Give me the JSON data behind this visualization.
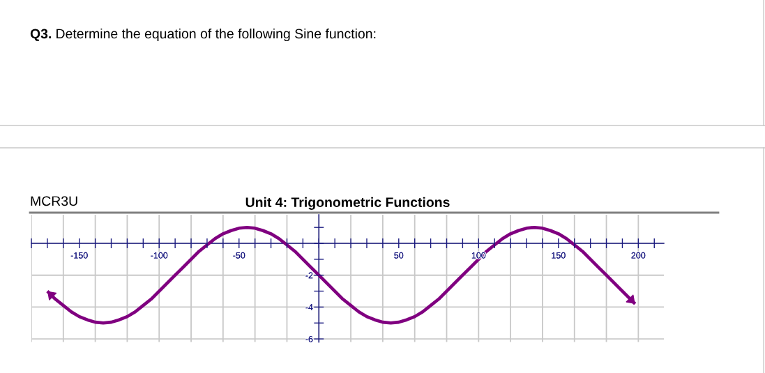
{
  "chart_data": {
    "type": "line",
    "title": "Unit 4: Trigonometric Functions",
    "annotations": [
      "Q3.",
      "Determine the equation of the following Sine function:",
      "MCR3U"
    ],
    "x": [
      -170,
      -165,
      -160,
      -155,
      -150,
      -145,
      -140,
      -135,
      -130,
      -125,
      -120,
      -115,
      -110,
      -105,
      -100,
      -95,
      -90,
      -85,
      -80,
      -75,
      -70,
      -65,
      -60,
      -55,
      -50,
      -45,
      -40,
      -35,
      -30,
      -25,
      -20,
      -15,
      -10,
      -5,
      0,
      5,
      10,
      15,
      20,
      25,
      30,
      35,
      40,
      45,
      50,
      55,
      60,
      65,
      70,
      75,
      80,
      85,
      90,
      95,
      100,
      105,
      110,
      115,
      120,
      125,
      130,
      135,
      140,
      145,
      150,
      155,
      160,
      165,
      170,
      175,
      180,
      185,
      190,
      198
    ],
    "series": [
      {
        "color": "#800080",
        "values": [
          -3.0,
          -3.5,
          -3.9,
          -4.3,
          -4.6,
          -4.8,
          -4.95,
          -5.0,
          -4.95,
          -4.8,
          -4.6,
          -4.3,
          -3.9,
          -3.5,
          -3.0,
          -2.5,
          -2.0,
          -1.5,
          -1.0,
          -0.5,
          -0.1,
          0.3,
          0.6,
          0.8,
          0.95,
          1.0,
          0.95,
          0.8,
          0.6,
          0.3,
          -0.1,
          -0.5,
          -1.0,
          -1.5,
          -2.0,
          -2.5,
          -3.0,
          -3.5,
          -3.9,
          -4.3,
          -4.6,
          -4.8,
          -4.95,
          -5.0,
          -4.95,
          -4.8,
          -4.6,
          -4.3,
          -3.9,
          -3.5,
          -3.0,
          -2.5,
          -2.0,
          -1.5,
          -1.0,
          -0.5,
          -0.1,
          0.3,
          0.6,
          0.8,
          0.95,
          1.0,
          0.95,
          0.8,
          0.6,
          0.3,
          -0.1,
          -0.5,
          -1.0,
          -1.5,
          -2.0,
          -2.5,
          -3.0,
          -3.8
        ]
      }
    ],
    "xlim": [
      -180,
      216
    ],
    "ylim": [
      -6.2,
      1.8
    ],
    "xticks": [
      {
        "value": -180,
        "label": null
      },
      {
        "value": -170,
        "label": null
      },
      {
        "value": -160,
        "label": null
      },
      -150,
      {
        "value": -140,
        "label": null
      },
      {
        "value": -130,
        "label": null
      },
      {
        "value": -120,
        "label": null
      },
      {
        "value": -110,
        "label": null
      },
      -100,
      {
        "value": -90,
        "label": null
      },
      {
        "value": -80,
        "label": null
      },
      {
        "value": -70,
        "label": null
      },
      {
        "value": -60,
        "label": null
      },
      -50,
      {
        "value": -40,
        "label": null
      },
      {
        "value": -30,
        "label": null
      },
      {
        "value": -20,
        "label": null
      },
      {
        "value": -10,
        "label": null
      },
      {
        "value": 0,
        "label": null
      },
      {
        "value": 10,
        "label": null
      },
      {
        "value": 20,
        "label": null
      },
      {
        "value": 30,
        "label": null
      },
      {
        "value": 40,
        "label": null
      },
      50,
      {
        "value": 60,
        "label": null
      },
      {
        "value": 70,
        "label": null
      },
      {
        "value": 80,
        "label": null
      },
      {
        "value": 90,
        "label": null
      },
      100,
      {
        "value": 110,
        "label": null
      },
      {
        "value": 120,
        "label": null
      },
      {
        "value": 130,
        "label": null
      },
      {
        "value": 140,
        "label": null
      },
      150,
      {
        "value": 160,
        "label": null
      },
      {
        "value": 170,
        "label": null
      },
      {
        "value": 180,
        "label": null
      },
      {
        "value": 190,
        "label": null
      },
      200,
      {
        "value": 210,
        "label": null
      }
    ],
    "yticks": [
      -6,
      {
        "value": -5,
        "label": null
      },
      -4,
      {
        "value": -3,
        "label": null
      },
      -2,
      {
        "value": -1,
        "label": null
      },
      {
        "value": 0,
        "label": null
      },
      {
        "value": 1,
        "label": null
      }
    ],
    "grid": true
  }
}
